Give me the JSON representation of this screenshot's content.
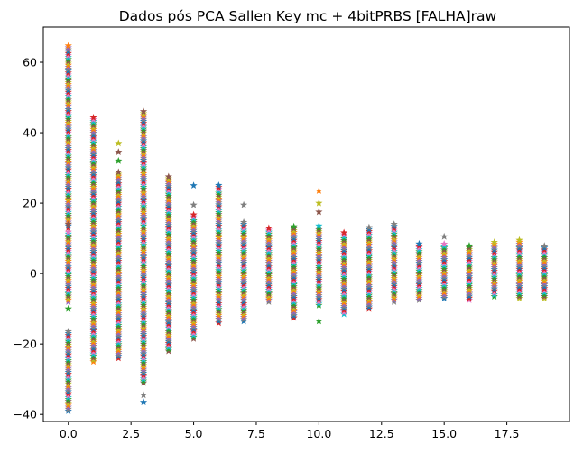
{
  "chart_data": {
    "type": "scatter",
    "title": "Dados pós PCA Sallen Key mc + 4bitPRBS [FALHA]raw",
    "xlabel": "",
    "ylabel": "",
    "xlim": [
      -1.0,
      20.0
    ],
    "ylim": [
      -42,
      70
    ],
    "xticks": [
      0.0,
      2.5,
      5.0,
      7.5,
      10.0,
      12.5,
      15.0,
      17.5
    ],
    "xtick_labels": [
      "0.0",
      "2.5",
      "5.0",
      "7.5",
      "10.0",
      "12.5",
      "15.0",
      "17.5"
    ],
    "yticks": [
      -40,
      -20,
      0,
      20,
      40,
      60
    ],
    "ytick_labels": [
      "−40",
      "−20",
      "0",
      "20",
      "40",
      "60"
    ],
    "marker": "star",
    "grid": false,
    "legend": "none",
    "palette": [
      "#1f77b4",
      "#ff7f0e",
      "#2ca02c",
      "#d62728",
      "#9467bd",
      "#8c564b",
      "#e377c2",
      "#7f7f7f",
      "#bcbd22",
      "#17becf"
    ],
    "columns": [
      {
        "x": 0,
        "segments": [
          [
            -39,
            -16
          ],
          [
            -8,
            12
          ],
          [
            13,
            65
          ]
        ],
        "outliers": [
          -10,
          14
        ]
      },
      {
        "x": 1,
        "segments": [
          [
            -25,
            44.5
          ]
        ],
        "outliers": []
      },
      {
        "x": 2,
        "segments": [
          [
            -24,
            29
          ]
        ],
        "outliers": [
          32,
          34.5,
          37
        ]
      },
      {
        "x": 3,
        "segments": [
          [
            -31,
            46
          ]
        ],
        "outliers": [
          -34.5,
          -36.5
        ]
      },
      {
        "x": 4,
        "segments": [
          [
            -22,
            28
          ]
        ],
        "outliers": []
      },
      {
        "x": 5,
        "segments": [
          [
            -18.5,
            17
          ]
        ],
        "outliers": [
          19.5,
          25
        ]
      },
      {
        "x": 6,
        "segments": [
          [
            -14,
            25.5
          ]
        ],
        "outliers": []
      },
      {
        "x": 7,
        "segments": [
          [
            -13.5,
            15
          ]
        ],
        "outliers": [
          19.5
        ]
      },
      {
        "x": 8,
        "segments": [
          [
            -8,
            13
          ]
        ],
        "outliers": []
      },
      {
        "x": 9,
        "segments": [
          [
            -12.5,
            13.5
          ]
        ],
        "outliers": []
      },
      {
        "x": 10,
        "segments": [
          [
            -9,
            14
          ]
        ],
        "outliers": [
          -13.5,
          17.5,
          20,
          23.5
        ]
      },
      {
        "x": 11,
        "segments": [
          [
            -11.5,
            12
          ]
        ],
        "outliers": []
      },
      {
        "x": 12,
        "segments": [
          [
            -10,
            13.5
          ]
        ],
        "outliers": []
      },
      {
        "x": 13,
        "segments": [
          [
            -8,
            14.5
          ]
        ],
        "outliers": []
      },
      {
        "x": 14,
        "segments": [
          [
            -7.5,
            8.5
          ]
        ],
        "outliers": []
      },
      {
        "x": 15,
        "segments": [
          [
            -7,
            8.5
          ]
        ],
        "outliers": [
          10.5
        ]
      },
      {
        "x": 16,
        "segments": [
          [
            -7.5,
            8
          ]
        ],
        "outliers": []
      },
      {
        "x": 17,
        "segments": [
          [
            -6.5,
            9
          ]
        ],
        "outliers": []
      },
      {
        "x": 18,
        "segments": [
          [
            -7,
            9.5
          ]
        ],
        "outliers": []
      },
      {
        "x": 19,
        "segments": [
          [
            -7,
            8
          ]
        ],
        "outliers": []
      }
    ]
  }
}
